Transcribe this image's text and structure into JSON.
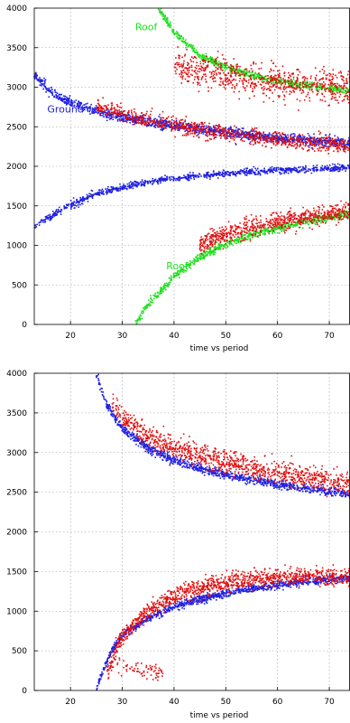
{
  "chart_data": [
    {
      "type": "scatter",
      "xlabel": "time vs period",
      "ylabel": "",
      "xlim": [
        13,
        74
      ],
      "ylim": [
        0,
        4000
      ],
      "xticks": [
        20,
        30,
        40,
        50,
        60,
        70
      ],
      "yticks": [
        0,
        500,
        1000,
        1500,
        2000,
        2500,
        3000,
        3500,
        4000
      ],
      "grid": true,
      "colors": {
        "blue": "#2020e0",
        "red": "#e01010",
        "green": "#20e020"
      },
      "annotations": [
        {
          "text": "Roof",
          "x": 32.5,
          "y": 3720,
          "color": "#20e020"
        },
        {
          "text": "Ground",
          "x": 15.5,
          "y": 2680,
          "color": "#2020e0"
        },
        {
          "text": "Roof",
          "x": 38.5,
          "y": 700,
          "color": "#20e020"
        }
      ],
      "series": [
        {
          "color": "blue",
          "x": [
            13,
            16,
            20,
            25,
            30,
            35,
            40,
            45,
            50,
            55,
            60,
            65,
            70,
            74
          ],
          "y": [
            3150,
            2950,
            2800,
            2700,
            2620,
            2560,
            2510,
            2470,
            2430,
            2390,
            2360,
            2330,
            2310,
            2290
          ],
          "spread": 70,
          "density": 22
        },
        {
          "color": "red",
          "x": [
            25,
            30,
            35,
            40,
            45,
            50,
            55,
            60,
            65,
            70,
            74
          ],
          "y": [
            2760,
            2660,
            2580,
            2520,
            2470,
            2420,
            2370,
            2330,
            2300,
            2280,
            2260
          ],
          "spread": 110,
          "density": 18
        },
        {
          "color": "blue",
          "x": [
            13,
            15,
            20,
            25,
            30,
            35,
            40,
            45,
            50,
            55,
            60,
            65,
            70,
            74
          ],
          "y": [
            1230,
            1320,
            1510,
            1650,
            1740,
            1800,
            1850,
            1880,
            1910,
            1930,
            1950,
            1960,
            1970,
            1980
          ],
          "spread": 45,
          "density": 16
        },
        {
          "color": "green",
          "x": [
            37,
            40,
            45,
            50,
            55,
            60,
            65,
            70,
            74
          ],
          "y": [
            4000,
            3700,
            3400,
            3250,
            3150,
            3080,
            3030,
            2990,
            2950
          ],
          "spread": 50,
          "density": 20
        },
        {
          "color": "red",
          "x": [
            40,
            45,
            50,
            55,
            60,
            65,
            70,
            74
          ],
          "y": [
            3250,
            3200,
            3150,
            3100,
            3060,
            3030,
            3010,
            3000
          ],
          "spread": 220,
          "density": 22
        },
        {
          "color": "green",
          "x": [
            32.5,
            35,
            40,
            45,
            50,
            55,
            60,
            65,
            70,
            74
          ],
          "y": [
            0,
            250,
            600,
            850,
            1020,
            1130,
            1220,
            1290,
            1350,
            1400
          ],
          "spread": 55,
          "density": 20
        },
        {
          "color": "red",
          "x": [
            45,
            50,
            55,
            60,
            65,
            70,
            74
          ],
          "y": [
            1000,
            1140,
            1230,
            1300,
            1350,
            1390,
            1420
          ],
          "spread": 130,
          "density": 24
        }
      ]
    },
    {
      "type": "scatter",
      "xlabel": "time vs period",
      "ylabel": "",
      "xlim": [
        13,
        74
      ],
      "ylim": [
        0,
        4000
      ],
      "xticks": [
        20,
        30,
        40,
        50,
        60,
        70
      ],
      "yticks": [
        0,
        500,
        1000,
        1500,
        2000,
        2500,
        3000,
        3500,
        4000
      ],
      "grid": true,
      "colors": {
        "blue": "#2020e0",
        "red": "#e01010",
        "green": "#20e020"
      },
      "annotations": [],
      "series": [
        {
          "color": "blue",
          "x": [
            25,
            27,
            30,
            35,
            40,
            45,
            50,
            55,
            60,
            65,
            70,
            74
          ],
          "y": [
            4000,
            3600,
            3300,
            3060,
            2900,
            2800,
            2720,
            2660,
            2600,
            2550,
            2510,
            2470
          ],
          "spread": 60,
          "density": 22
        },
        {
          "color": "red",
          "x": [
            28,
            30,
            35,
            40,
            45,
            50,
            55,
            60,
            65,
            70,
            74
          ],
          "y": [
            3700,
            3450,
            3200,
            3060,
            2960,
            2880,
            2810,
            2750,
            2690,
            2640,
            2600
          ],
          "spread": 160,
          "density": 22
        },
        {
          "color": "blue",
          "x": [
            25,
            26,
            28,
            30,
            35,
            40,
            45,
            50,
            55,
            60,
            65,
            70,
            74
          ],
          "y": [
            0,
            200,
            500,
            700,
            910,
            1050,
            1150,
            1220,
            1280,
            1330,
            1370,
            1400,
            1420
          ],
          "spread": 55,
          "density": 22
        },
        {
          "color": "red",
          "x": [
            27,
            30,
            35,
            40,
            45,
            50,
            55,
            60,
            65,
            70,
            74
          ],
          "y": [
            200,
            700,
            1000,
            1180,
            1290,
            1360,
            1400,
            1420,
            1440,
            1440,
            1440
          ],
          "spread": 120,
          "density": 24
        },
        {
          "color": "red",
          "x": [
            29,
            32,
            35,
            38
          ],
          "y": [
            300,
            280,
            250,
            220
          ],
          "spread": 120,
          "density": 8
        }
      ]
    }
  ]
}
